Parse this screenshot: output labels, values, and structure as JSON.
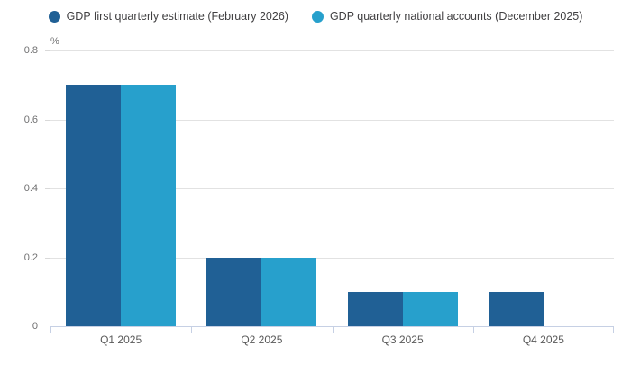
{
  "legend": {
    "items": [
      {
        "label": "GDP first quarterly estimate (February 2026)",
        "color": "#206095"
      },
      {
        "label": "GDP quarterly national accounts (December 2025)",
        "color": "#27A0CC"
      }
    ]
  },
  "chart_data": {
    "type": "bar",
    "categories": [
      "Q1 2025",
      "Q2 2025",
      "Q3 2025",
      "Q4 2025"
    ],
    "series": [
      {
        "name": "GDP first quarterly estimate (February 2026)",
        "color": "#206095",
        "values": [
          0.7,
          0.2,
          0.1,
          0.1
        ]
      },
      {
        "name": "GDP quarterly national accounts (December 2025)",
        "color": "#27A0CC",
        "values": [
          0.7,
          0.2,
          0.1,
          null
        ]
      }
    ],
    "title": "",
    "xlabel": "",
    "ylabel": "%",
    "ylim": [
      0,
      0.8
    ],
    "yticks": [
      0,
      0.2,
      0.4,
      0.6,
      0.8
    ],
    "ytick_labels": [
      "0",
      "0.2",
      "0.4",
      "0.6",
      "0.8"
    ],
    "grid": true,
    "legend_position": "top"
  },
  "colors": {
    "axis": "#c6d0e4",
    "gridline": "#e2e2e2",
    "tick_text": "#707071",
    "category_text": "#595959",
    "legend_text": "#414042"
  }
}
